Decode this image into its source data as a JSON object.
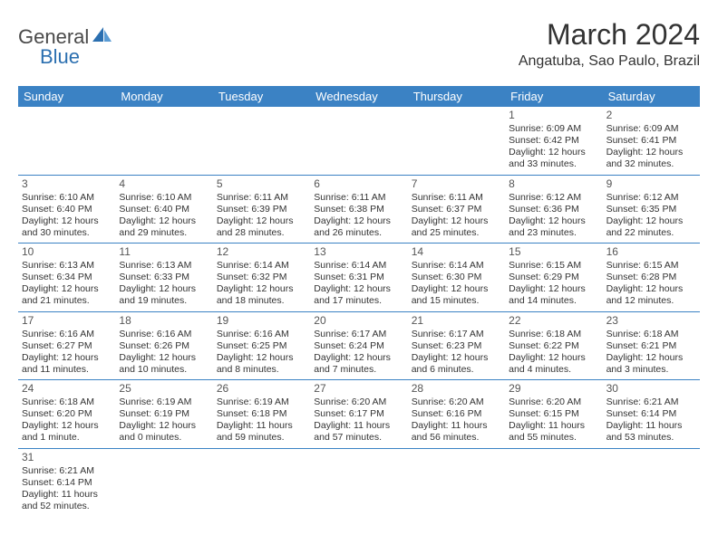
{
  "logo": {
    "text1": "General",
    "text2": "Blue"
  },
  "title": "March 2024",
  "location": "Angatuba, Sao Paulo, Brazil",
  "colors": {
    "header_bg": "#3b82c4",
    "header_text": "#ffffff",
    "row_border": "#3b82c4",
    "logo_gray": "#4a4a4a",
    "logo_blue": "#2b6fb0",
    "text": "#333333"
  },
  "day_names": [
    "Sunday",
    "Monday",
    "Tuesday",
    "Wednesday",
    "Thursday",
    "Friday",
    "Saturday"
  ],
  "weeks": [
    [
      null,
      null,
      null,
      null,
      null,
      {
        "n": "1",
        "sr": "Sunrise: 6:09 AM",
        "ss": "Sunset: 6:42 PM",
        "d1": "Daylight: 12 hours",
        "d2": "and 33 minutes."
      },
      {
        "n": "2",
        "sr": "Sunrise: 6:09 AM",
        "ss": "Sunset: 6:41 PM",
        "d1": "Daylight: 12 hours",
        "d2": "and 32 minutes."
      }
    ],
    [
      {
        "n": "3",
        "sr": "Sunrise: 6:10 AM",
        "ss": "Sunset: 6:40 PM",
        "d1": "Daylight: 12 hours",
        "d2": "and 30 minutes."
      },
      {
        "n": "4",
        "sr": "Sunrise: 6:10 AM",
        "ss": "Sunset: 6:40 PM",
        "d1": "Daylight: 12 hours",
        "d2": "and 29 minutes."
      },
      {
        "n": "5",
        "sr": "Sunrise: 6:11 AM",
        "ss": "Sunset: 6:39 PM",
        "d1": "Daylight: 12 hours",
        "d2": "and 28 minutes."
      },
      {
        "n": "6",
        "sr": "Sunrise: 6:11 AM",
        "ss": "Sunset: 6:38 PM",
        "d1": "Daylight: 12 hours",
        "d2": "and 26 minutes."
      },
      {
        "n": "7",
        "sr": "Sunrise: 6:11 AM",
        "ss": "Sunset: 6:37 PM",
        "d1": "Daylight: 12 hours",
        "d2": "and 25 minutes."
      },
      {
        "n": "8",
        "sr": "Sunrise: 6:12 AM",
        "ss": "Sunset: 6:36 PM",
        "d1": "Daylight: 12 hours",
        "d2": "and 23 minutes."
      },
      {
        "n": "9",
        "sr": "Sunrise: 6:12 AM",
        "ss": "Sunset: 6:35 PM",
        "d1": "Daylight: 12 hours",
        "d2": "and 22 minutes."
      }
    ],
    [
      {
        "n": "10",
        "sr": "Sunrise: 6:13 AM",
        "ss": "Sunset: 6:34 PM",
        "d1": "Daylight: 12 hours",
        "d2": "and 21 minutes."
      },
      {
        "n": "11",
        "sr": "Sunrise: 6:13 AM",
        "ss": "Sunset: 6:33 PM",
        "d1": "Daylight: 12 hours",
        "d2": "and 19 minutes."
      },
      {
        "n": "12",
        "sr": "Sunrise: 6:14 AM",
        "ss": "Sunset: 6:32 PM",
        "d1": "Daylight: 12 hours",
        "d2": "and 18 minutes."
      },
      {
        "n": "13",
        "sr": "Sunrise: 6:14 AM",
        "ss": "Sunset: 6:31 PM",
        "d1": "Daylight: 12 hours",
        "d2": "and 17 minutes."
      },
      {
        "n": "14",
        "sr": "Sunrise: 6:14 AM",
        "ss": "Sunset: 6:30 PM",
        "d1": "Daylight: 12 hours",
        "d2": "and 15 minutes."
      },
      {
        "n": "15",
        "sr": "Sunrise: 6:15 AM",
        "ss": "Sunset: 6:29 PM",
        "d1": "Daylight: 12 hours",
        "d2": "and 14 minutes."
      },
      {
        "n": "16",
        "sr": "Sunrise: 6:15 AM",
        "ss": "Sunset: 6:28 PM",
        "d1": "Daylight: 12 hours",
        "d2": "and 12 minutes."
      }
    ],
    [
      {
        "n": "17",
        "sr": "Sunrise: 6:16 AM",
        "ss": "Sunset: 6:27 PM",
        "d1": "Daylight: 12 hours",
        "d2": "and 11 minutes."
      },
      {
        "n": "18",
        "sr": "Sunrise: 6:16 AM",
        "ss": "Sunset: 6:26 PM",
        "d1": "Daylight: 12 hours",
        "d2": "and 10 minutes."
      },
      {
        "n": "19",
        "sr": "Sunrise: 6:16 AM",
        "ss": "Sunset: 6:25 PM",
        "d1": "Daylight: 12 hours",
        "d2": "and 8 minutes."
      },
      {
        "n": "20",
        "sr": "Sunrise: 6:17 AM",
        "ss": "Sunset: 6:24 PM",
        "d1": "Daylight: 12 hours",
        "d2": "and 7 minutes."
      },
      {
        "n": "21",
        "sr": "Sunrise: 6:17 AM",
        "ss": "Sunset: 6:23 PM",
        "d1": "Daylight: 12 hours",
        "d2": "and 6 minutes."
      },
      {
        "n": "22",
        "sr": "Sunrise: 6:18 AM",
        "ss": "Sunset: 6:22 PM",
        "d1": "Daylight: 12 hours",
        "d2": "and 4 minutes."
      },
      {
        "n": "23",
        "sr": "Sunrise: 6:18 AM",
        "ss": "Sunset: 6:21 PM",
        "d1": "Daylight: 12 hours",
        "d2": "and 3 minutes."
      }
    ],
    [
      {
        "n": "24",
        "sr": "Sunrise: 6:18 AM",
        "ss": "Sunset: 6:20 PM",
        "d1": "Daylight: 12 hours",
        "d2": "and 1 minute."
      },
      {
        "n": "25",
        "sr": "Sunrise: 6:19 AM",
        "ss": "Sunset: 6:19 PM",
        "d1": "Daylight: 12 hours",
        "d2": "and 0 minutes."
      },
      {
        "n": "26",
        "sr": "Sunrise: 6:19 AM",
        "ss": "Sunset: 6:18 PM",
        "d1": "Daylight: 11 hours",
        "d2": "and 59 minutes."
      },
      {
        "n": "27",
        "sr": "Sunrise: 6:20 AM",
        "ss": "Sunset: 6:17 PM",
        "d1": "Daylight: 11 hours",
        "d2": "and 57 minutes."
      },
      {
        "n": "28",
        "sr": "Sunrise: 6:20 AM",
        "ss": "Sunset: 6:16 PM",
        "d1": "Daylight: 11 hours",
        "d2": "and 56 minutes."
      },
      {
        "n": "29",
        "sr": "Sunrise: 6:20 AM",
        "ss": "Sunset: 6:15 PM",
        "d1": "Daylight: 11 hours",
        "d2": "and 55 minutes."
      },
      {
        "n": "30",
        "sr": "Sunrise: 6:21 AM",
        "ss": "Sunset: 6:14 PM",
        "d1": "Daylight: 11 hours",
        "d2": "and 53 minutes."
      }
    ],
    [
      {
        "n": "31",
        "sr": "Sunrise: 6:21 AM",
        "ss": "Sunset: 6:14 PM",
        "d1": "Daylight: 11 hours",
        "d2": "and 52 minutes."
      },
      null,
      null,
      null,
      null,
      null,
      null
    ]
  ]
}
